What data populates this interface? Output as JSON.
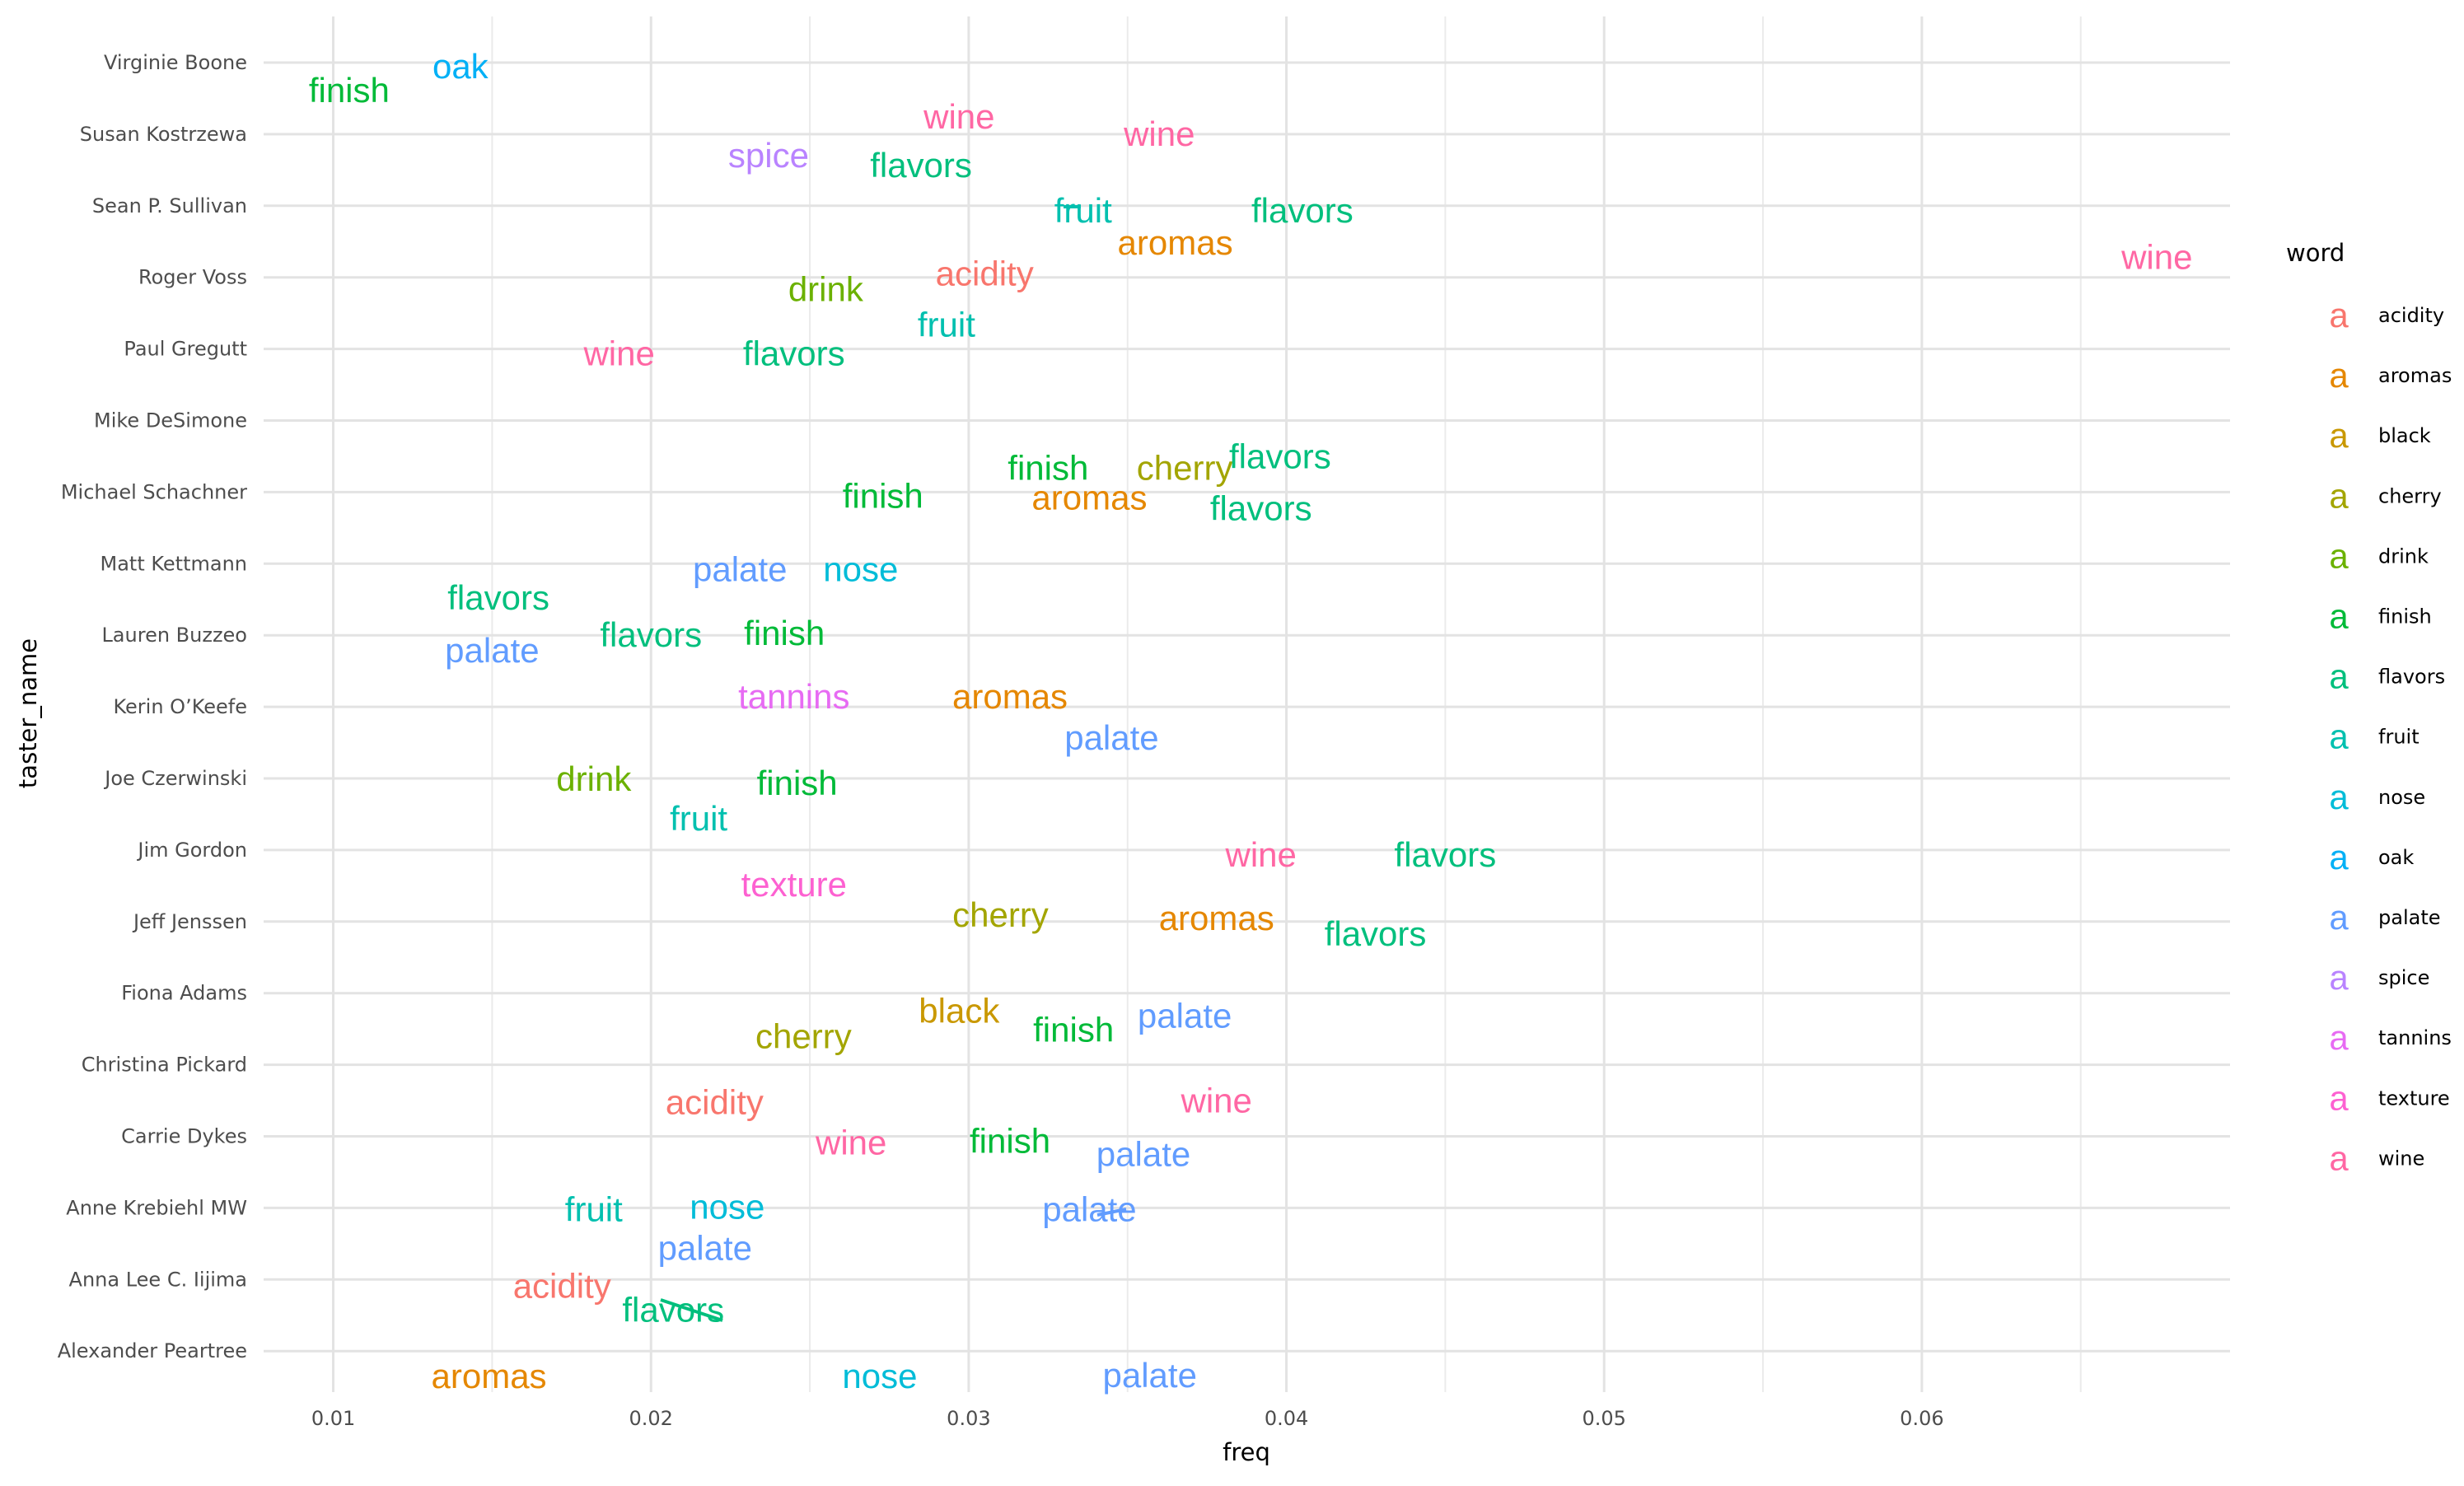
{
  "chart_data": {
    "type": "scatter",
    "subtype": "text-repel labels",
    "xlabel": "freq",
    "ylabel": "taster_name",
    "xlim": [
      0.009,
      0.0697
    ],
    "x_ticks": [
      0.01,
      0.02,
      0.03,
      0.04,
      0.05,
      0.06
    ],
    "x_tick_labels": [
      "0.01",
      "0.02",
      "0.03",
      "0.04",
      "0.05",
      "0.06"
    ],
    "categories": [
      "Virginie Boone",
      "Susan Kostrzewa",
      "Sean P. Sullivan",
      "Roger Voss",
      "Paul Gregutt",
      "Mike DeSimone",
      "Michael Schachner",
      "Matt Kettmann",
      "Lauren Buzzeo",
      "Kerin O’Keefe",
      "Joe Czerwinski",
      "Jim Gordon",
      "Jeff Jenssen",
      "Fiona Adams",
      "Christina Pickard",
      "Carrie Dykes",
      "Anne Krebiehl MW",
      "Anna Lee C. Iijima",
      "Alexander Peartree"
    ],
    "grid": true,
    "legend": {
      "title": "word",
      "position": "right",
      "key_glyph": "a",
      "entries": [
        {
          "word": "acidity",
          "color": "#F8766D"
        },
        {
          "word": "aromas",
          "color": "#E58700"
        },
        {
          "word": "black",
          "color": "#C99800"
        },
        {
          "word": "cherry",
          "color": "#A3A500"
        },
        {
          "word": "drink",
          "color": "#6BB100"
        },
        {
          "word": "finish",
          "color": "#00BA38"
        },
        {
          "word": "flavors",
          "color": "#00BF7D"
        },
        {
          "word": "fruit",
          "color": "#00C0AF"
        },
        {
          "word": "nose",
          "color": "#00BCD8"
        },
        {
          "word": "oak",
          "color": "#00B0F6"
        },
        {
          "word": "palate",
          "color": "#619CFF"
        },
        {
          "word": "spice",
          "color": "#B983FF"
        },
        {
          "word": "tannins",
          "color": "#E76BF3"
        },
        {
          "word": "texture",
          "color": "#FD61D1"
        },
        {
          "word": "wine",
          "color": "#FF67A4"
        }
      ]
    },
    "points": [
      {
        "taster": "Virginie Boone",
        "word": "oak",
        "freq": 0.014
      },
      {
        "taster": "Virginie Boone",
        "word": "finish",
        "freq": 0.0105
      },
      {
        "taster": "Susan Kostrzewa",
        "word": "wine",
        "freq": 0.0297
      },
      {
        "taster": "Susan Kostrzewa",
        "word": "wine",
        "freq": 0.036
      },
      {
        "taster": "Susan Kostrzewa",
        "word": "spice",
        "freq": 0.0237
      },
      {
        "taster": "Susan Kostrzewa",
        "word": "flavors",
        "freq": 0.0285
      },
      {
        "taster": "Sean P. Sullivan",
        "word": "fruit",
        "freq": 0.0336
      },
      {
        "taster": "Sean P. Sullivan",
        "word": "flavors",
        "freq": 0.0405
      },
      {
        "taster": "Sean P. Sullivan",
        "word": "aromas",
        "freq": 0.0365
      },
      {
        "taster": "Roger Voss",
        "word": "wine",
        "freq": 0.0674
      },
      {
        "taster": "Roger Voss",
        "word": "acidity",
        "freq": 0.0305
      },
      {
        "taster": "Roger Voss",
        "word": "drink",
        "freq": 0.0255
      },
      {
        "taster": "Paul Gregutt",
        "word": "fruit",
        "freq": 0.0293
      },
      {
        "taster": "Paul Gregutt",
        "word": "wine",
        "freq": 0.019
      },
      {
        "taster": "Paul Gregutt",
        "word": "flavors",
        "freq": 0.0245
      },
      {
        "taster": "Mike DeSimone",
        "word": "finish",
        "freq": 0.0325
      },
      {
        "taster": "Mike DeSimone",
        "word": "cherry",
        "freq": 0.0368
      },
      {
        "taster": "Mike DeSimone",
        "word": "flavors",
        "freq": 0.0398
      },
      {
        "taster": "Michael Schachner",
        "word": "finish",
        "freq": 0.0273
      },
      {
        "taster": "Michael Schachner",
        "word": "aromas",
        "freq": 0.0338
      },
      {
        "taster": "Michael Schachner",
        "word": "flavors",
        "freq": 0.0392
      },
      {
        "taster": "Matt Kettmann",
        "word": "palate",
        "freq": 0.0228
      },
      {
        "taster": "Matt Kettmann",
        "word": "nose",
        "freq": 0.0266
      },
      {
        "taster": "Lauren Buzzeo",
        "word": "flavors",
        "freq": 0.0152
      },
      {
        "taster": "Lauren Buzzeo",
        "word": "flavors",
        "freq": 0.02
      },
      {
        "taster": "Lauren Buzzeo",
        "word": "finish",
        "freq": 0.0242
      },
      {
        "taster": "Lauren Buzzeo",
        "word": "palate",
        "freq": 0.015
      },
      {
        "taster": "Kerin O’Keefe",
        "word": "tannins",
        "freq": 0.0245
      },
      {
        "taster": "Kerin O’Keefe",
        "word": "aromas",
        "freq": 0.0313
      },
      {
        "taster": "Kerin O’Keefe",
        "word": "palate",
        "freq": 0.0345
      },
      {
        "taster": "Joe Czerwinski",
        "word": "drink",
        "freq": 0.0182
      },
      {
        "taster": "Joe Czerwinski",
        "word": "finish",
        "freq": 0.0246
      },
      {
        "taster": "Joe Czerwinski",
        "word": "fruit",
        "freq": 0.0215
      },
      {
        "taster": "Jim Gordon",
        "word": "wine",
        "freq": 0.0392
      },
      {
        "taster": "Jim Gordon",
        "word": "flavors",
        "freq": 0.045
      },
      {
        "taster": "Jim Gordon",
        "word": "texture",
        "freq": 0.0245
      },
      {
        "taster": "Jeff Jenssen",
        "word": "cherry",
        "freq": 0.031
      },
      {
        "taster": "Jeff Jenssen",
        "word": "aromas",
        "freq": 0.0378
      },
      {
        "taster": "Jeff Jenssen",
        "word": "flavors",
        "freq": 0.0428
      },
      {
        "taster": "Fiona Adams",
        "word": "finish",
        "freq": 0.0333
      },
      {
        "taster": "Fiona Adams",
        "word": "black",
        "freq": 0.0297
      },
      {
        "taster": "Fiona Adams",
        "word": "palate",
        "freq": 0.0368
      },
      {
        "taster": "Christina Pickard",
        "word": "cherry",
        "freq": 0.0248
      },
      {
        "taster": "Christina Pickard",
        "word": "acidity",
        "freq": 0.022
      },
      {
        "taster": "Christina Pickard",
        "word": "wine",
        "freq": 0.0378
      },
      {
        "taster": "Carrie Dykes",
        "word": "wine",
        "freq": 0.0263
      },
      {
        "taster": "Carrie Dykes",
        "word": "finish",
        "freq": 0.0313
      },
      {
        "taster": "Carrie Dykes",
        "word": "palate",
        "freq": 0.0355
      },
      {
        "taster": "Anne Krebiehl MW",
        "word": "fruit",
        "freq": 0.0182
      },
      {
        "taster": "Anne Krebiehl MW",
        "word": "nose",
        "freq": 0.0224
      },
      {
        "taster": "Anne Krebiehl MW",
        "word": "palate",
        "freq": 0.0338
      },
      {
        "taster": "Anna Lee C. Iijima",
        "word": "palate",
        "freq": 0.0217
      },
      {
        "taster": "Anna Lee C. Iijima",
        "word": "acidity",
        "freq": 0.0172
      },
      {
        "taster": "Anna Lee C. Iijima",
        "word": "flavors",
        "freq": 0.0207
      },
      {
        "taster": "Alexander Peartree",
        "word": "aromas",
        "freq": 0.0149
      },
      {
        "taster": "Alexander Peartree",
        "word": "nose",
        "freq": 0.0272
      },
      {
        "taster": "Alexander Peartree",
        "word": "palate",
        "freq": 0.0357
      }
    ]
  }
}
